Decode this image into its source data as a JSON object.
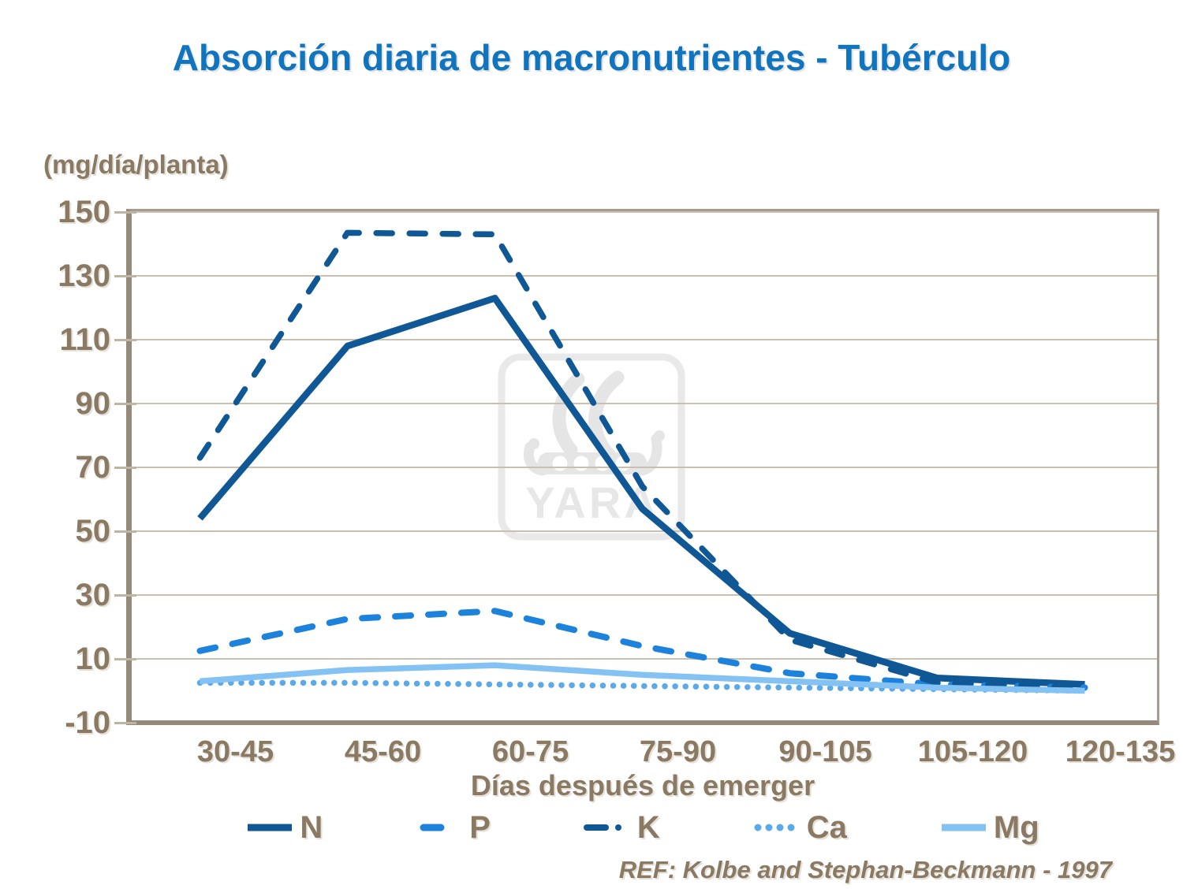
{
  "title": "Absorción diaria de macronutrientes - Tubérculo",
  "y_axis_unit_label": "(mg/día/planta)",
  "x_axis_title": "Días después de emerger",
  "reference": "REF: Kolbe and Stephan-Beckmann - 1997",
  "watermark": {
    "brand_text": "YARA",
    "icon": "yara-viking-ship-logo"
  },
  "colors": {
    "title_blue": "#1174BE",
    "axis_text_brown": "#8A7963",
    "gridline": "#C9C0B1",
    "frame": "#A79D8E",
    "axis_line": "#958A7A",
    "navy": "#0F5895",
    "medium_blue": "#1C82DC",
    "light_blue_dots": "#5CA9EA",
    "light_blue": "#83C2F2",
    "watermark_gray": "#E7E7E7"
  },
  "chart_data": {
    "type": "line",
    "title": "Absorción diaria de macronutrientes - Tubérculo",
    "xlabel": "Días después de emerger",
    "ylabel": "(mg/día/planta)",
    "categories": [
      "30-45",
      "45-60",
      "60-75",
      "75-90",
      "90-105",
      "105-120",
      "120-135"
    ],
    "series": [
      {
        "name": "N",
        "style": "solid",
        "color": "#0F5895",
        "width": 8.5,
        "values": [
          54,
          108,
          123,
          57,
          18,
          4,
          2
        ]
      },
      {
        "name": "P",
        "style": "dashed",
        "color": "#1C82DC",
        "width": 8,
        "values": [
          12.5,
          22.5,
          25,
          14,
          5.5,
          2,
          1
        ]
      },
      {
        "name": "K",
        "style": "dashed",
        "color": "#0F5895",
        "width": 7.5,
        "values": [
          73,
          143.5,
          143,
          64,
          16,
          2.5,
          1
        ]
      },
      {
        "name": "Ca",
        "style": "dotted",
        "color": "#5CA9EA",
        "width": 7.5,
        "values": [
          2.5,
          2.5,
          2,
          1.5,
          1,
          0.5,
          0
        ]
      },
      {
        "name": "Mg",
        "style": "solid",
        "color": "#83C2F2",
        "width": 7.5,
        "values": [
          3,
          6.5,
          8,
          5,
          3,
          1,
          0
        ]
      }
    ],
    "ylim": [
      -10,
      150
    ],
    "yticks": [
      150,
      130,
      110,
      90,
      70,
      50,
      30,
      10,
      -10
    ],
    "grid": true,
    "legend_position": "bottom"
  }
}
